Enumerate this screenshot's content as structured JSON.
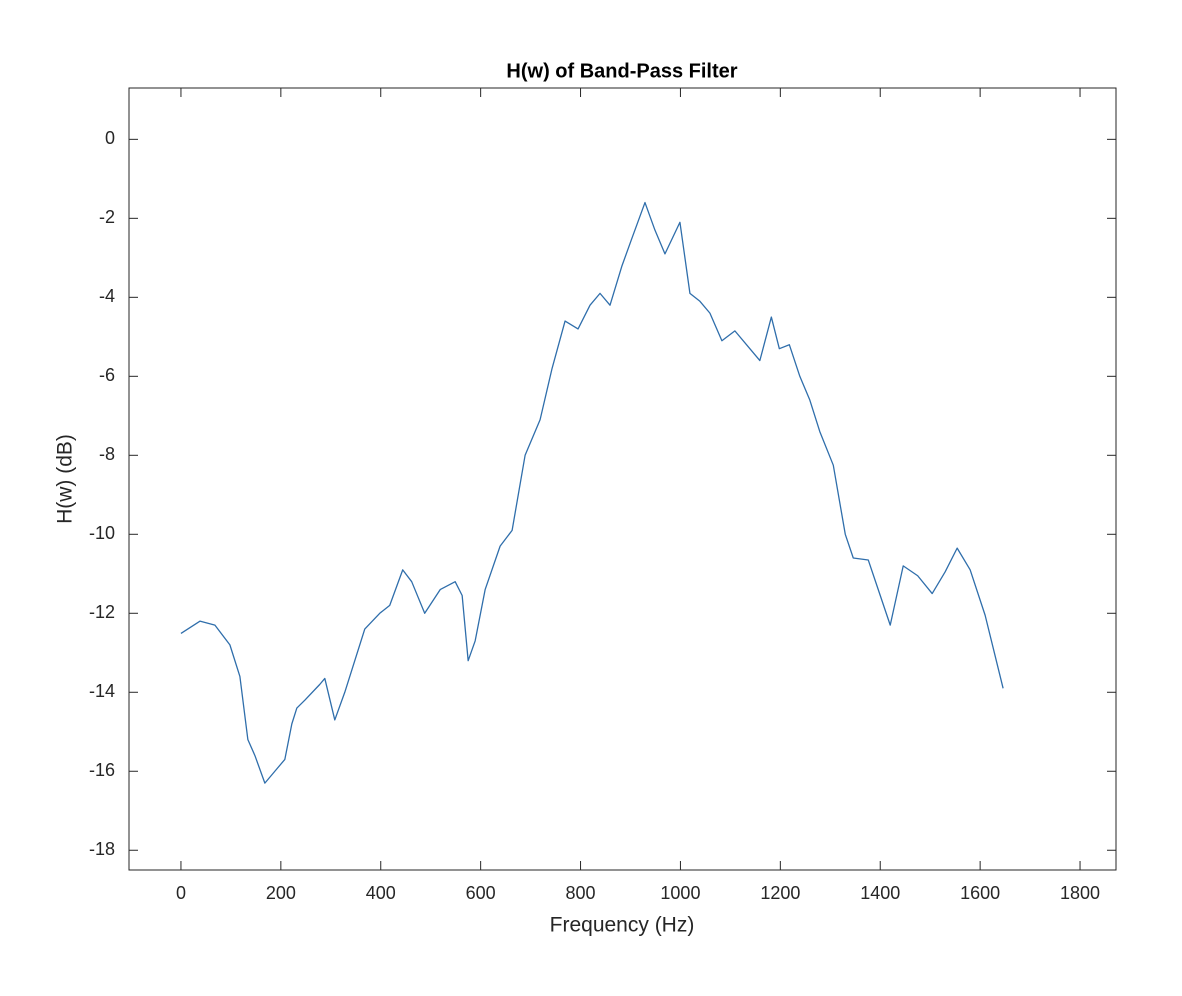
{
  "chart_data": {
    "type": "line",
    "title": "H(w) of Band-Pass Filter",
    "x_label": "Frequency (Hz)",
    "y_label": "H(w) (dB)",
    "xlim": [
      -104,
      1872
    ],
    "ylim": [
      -18.5,
      1.3
    ],
    "xticks": [
      0,
      200,
      400,
      600,
      800,
      1000,
      1200,
      1400,
      1600,
      1800
    ],
    "yticks": [
      -18,
      -16,
      -14,
      -12,
      -10,
      -8,
      -6,
      -4,
      -2,
      0
    ],
    "grid": false,
    "x": [
      0,
      38,
      68,
      98,
      118,
      134,
      148,
      168,
      188,
      208,
      222,
      232,
      248,
      278,
      288,
      308,
      328,
      348,
      368,
      398,
      418,
      444,
      462,
      488,
      519,
      549,
      563,
      575,
      589,
      609,
      639,
      663,
      689,
      719,
      743,
      769,
      795,
      819,
      839,
      859,
      883,
      903,
      929,
      949,
      969,
      999,
      1019,
      1039,
      1059,
      1083,
      1109,
      1139,
      1159,
      1182,
      1198,
      1218,
      1239,
      1259,
      1279,
      1306,
      1330,
      1346,
      1376,
      1400,
      1420,
      1446,
      1475,
      1504,
      1530,
      1554,
      1580,
      1610,
      1646
    ],
    "series": [
      {
        "color": "#2f6eab",
        "values": [
          -12.51,
          -12.2,
          -12.3,
          -12.8,
          -13.6,
          -15.2,
          -15.6,
          -16.3,
          -16.0,
          -15.7,
          -14.8,
          -14.4,
          -14.2,
          -13.8,
          -13.65,
          -14.7,
          -14.0,
          -13.2,
          -12.4,
          -12.0,
          -11.8,
          -10.9,
          -11.2,
          -12.0,
          -11.4,
          -11.2,
          -11.55,
          -13.2,
          -12.7,
          -11.4,
          -10.3,
          -9.9,
          -8.0,
          -7.1,
          -5.8,
          -4.6,
          -4.8,
          -4.2,
          -3.9,
          -4.2,
          -3.2,
          -2.5,
          -1.6,
          -2.3,
          -2.9,
          -2.1,
          -3.9,
          -4.1,
          -4.4,
          -5.1,
          -4.85,
          -5.3,
          -5.6,
          -4.5,
          -5.3,
          -5.2,
          -6.0,
          -6.6,
          -7.4,
          -8.25,
          -10.0,
          -10.6,
          -10.65,
          -11.55,
          -12.3,
          -10.8,
          -11.05,
          -11.5,
          -10.95,
          -10.35,
          -10.9,
          -12.05,
          -13.9
        ]
      }
    ]
  }
}
